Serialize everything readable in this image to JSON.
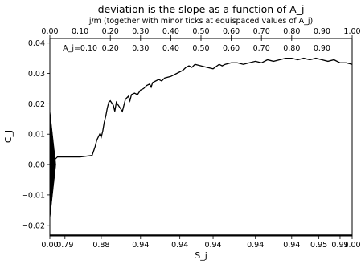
{
  "chart_data": {
    "type": "line",
    "title": "deviation is the slope as a function of A_j",
    "xlabel": "S_j",
    "ylabel": "C_j",
    "top_axis_label": "j/m (together with minor ticks at equispaced values of A_j)",
    "xlim": [
      0,
      1
    ],
    "ylim": [
      -0.0235,
      0.0415
    ],
    "grid": false,
    "legend": "none",
    "line_color": "#000000",
    "y_ticks": [
      -0.02,
      -0.01,
      0.0,
      0.01,
      0.02,
      0.03,
      0.04
    ],
    "y_tick_labels": [
      "−0.02",
      "−0.01",
      "0.00",
      "0.01",
      "0.02",
      "0.03",
      "0.04"
    ],
    "top_ticks": [
      0.0,
      0.1,
      0.2,
      0.3,
      0.4,
      0.5,
      0.6,
      0.7,
      0.8,
      0.9,
      1.0
    ],
    "top_tick_labels": [
      "0.00",
      "0.10",
      "0.20",
      "0.30",
      "0.40",
      "0.50",
      "0.60",
      "0.70",
      "0.80",
      "0.90",
      "1.00"
    ],
    "bottom_tick_positions": [
      0.0,
      0.05,
      0.17,
      0.3,
      0.43,
      0.54,
      0.68,
      0.8,
      0.89,
      0.96,
      1.0
    ],
    "bottom_tick_labels": [
      "0.00",
      "0.79",
      "0.88",
      "0.94",
      "0.94",
      "0.94",
      "0.94",
      "0.94",
      "0.95",
      "0.99",
      "1.00"
    ],
    "minor_tick_labels": [
      {
        "x": 0.1,
        "label": "A_j=0.10"
      },
      {
        "x": 0.2,
        "label": "0.20"
      },
      {
        "x": 0.3,
        "label": "0.30"
      },
      {
        "x": 0.4,
        "label": "0.40"
      },
      {
        "x": 0.5,
        "label": "0.50"
      },
      {
        "x": 0.6,
        "label": "0.60"
      },
      {
        "x": 0.7,
        "label": "0.70"
      },
      {
        "x": 0.8,
        "label": "0.80"
      },
      {
        "x": 0.9,
        "label": "0.90"
      }
    ],
    "spike": {
      "x_max": 0.02,
      "y_top": 0.018,
      "y_bottom": -0.018
    },
    "series": [
      {
        "x": [
          0.0,
          0.025,
          0.06,
          0.1,
          0.14,
          0.145,
          0.15,
          0.155,
          0.165,
          0.17,
          0.175,
          0.18,
          0.185,
          0.19,
          0.195,
          0.2,
          0.21,
          0.215,
          0.22,
          0.23,
          0.24,
          0.245,
          0.25,
          0.26,
          0.265,
          0.27,
          0.28,
          0.29,
          0.3,
          0.31,
          0.32,
          0.33,
          0.335,
          0.34,
          0.35,
          0.36,
          0.37,
          0.38,
          0.4,
          0.42,
          0.44,
          0.45,
          0.46,
          0.47,
          0.48,
          0.5,
          0.52,
          0.54,
          0.56,
          0.57,
          0.58,
          0.6,
          0.62,
          0.64,
          0.66,
          0.68,
          0.7,
          0.72,
          0.74,
          0.76,
          0.78,
          0.8,
          0.82,
          0.84,
          0.86,
          0.88,
          0.9,
          0.92,
          0.94,
          0.96,
          0.98,
          1.0
        ],
        "y": [
          0.0,
          0.0025,
          0.0025,
          0.0025,
          0.003,
          0.0045,
          0.006,
          0.008,
          0.01,
          0.009,
          0.011,
          0.014,
          0.016,
          0.0185,
          0.0205,
          0.021,
          0.0195,
          0.0175,
          0.0205,
          0.019,
          0.0175,
          0.0195,
          0.0215,
          0.0225,
          0.021,
          0.023,
          0.0235,
          0.023,
          0.0245,
          0.025,
          0.026,
          0.0265,
          0.0255,
          0.027,
          0.0275,
          0.028,
          0.0275,
          0.0285,
          0.029,
          0.03,
          0.031,
          0.032,
          0.0325,
          0.032,
          0.033,
          0.0325,
          0.032,
          0.0315,
          0.033,
          0.0325,
          0.033,
          0.0335,
          0.0335,
          0.033,
          0.0335,
          0.034,
          0.0335,
          0.0345,
          0.034,
          0.0345,
          0.035,
          0.035,
          0.0345,
          0.035,
          0.0345,
          0.035,
          0.0345,
          0.034,
          0.0345,
          0.0335,
          0.0335,
          0.033
        ]
      }
    ]
  }
}
